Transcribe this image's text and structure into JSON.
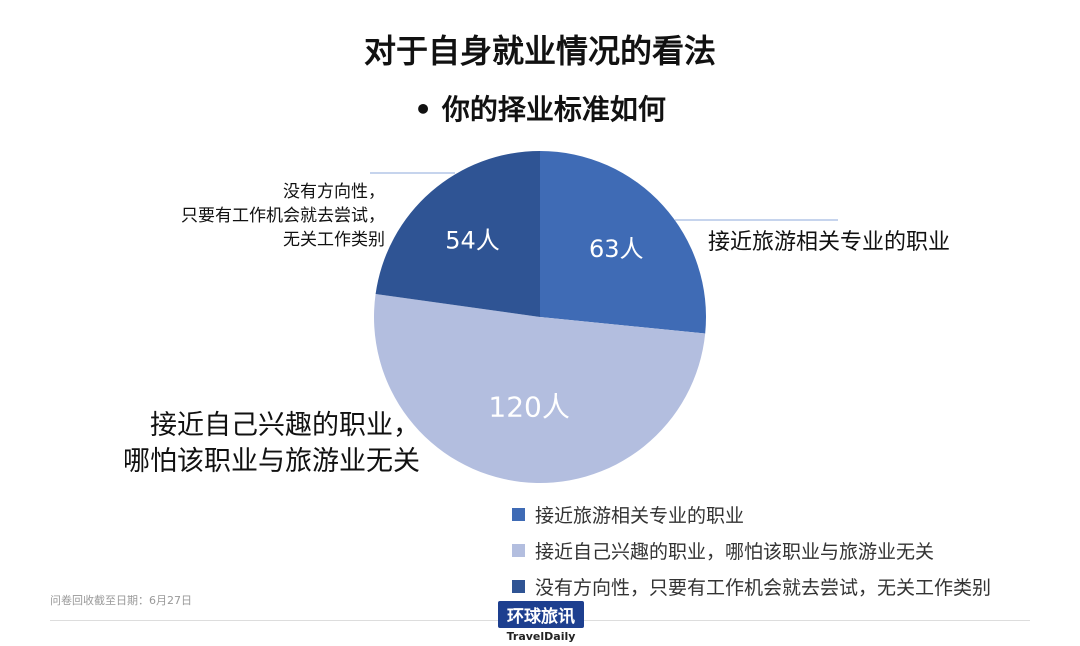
{
  "title": "对于自身就业情况的看法",
  "subtitle": "• 你的择业标准如何",
  "chart_data": {
    "type": "pie",
    "categories": [
      "接近旅游相关专业的职业",
      "接近自己兴趣的职业，哪怕该职业与旅游业无关",
      "没有方向性，只要有工作机会就去尝试，无关工作类别"
    ],
    "values": [
      63,
      120,
      54
    ],
    "data_labels": [
      "63人",
      "120人",
      "54人"
    ],
    "colors": [
      "#3f6bb5",
      "#b3bedf",
      "#2f5494"
    ],
    "callouts": [
      "接近旅游相关专业的职业",
      "接近自己兴趣的职业，\n哪怕该职业与旅游业无关",
      "没有方向性，\n只要有工作机会就去尝试，\n无关工作类别"
    ],
    "legend_position": "bottom-right"
  },
  "footer": {
    "note": "问卷回收截至日期：6月27日",
    "logo_cn": "环球旅讯",
    "logo_en": "TravelDaily"
  }
}
